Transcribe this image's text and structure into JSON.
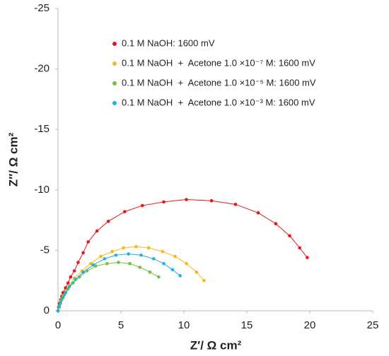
{
  "chart_data": {
    "type": "scatter",
    "x_label": "Z′/ Ω cm²",
    "y_label": "Z″/ Ω cm²",
    "xlim": [
      0,
      25
    ],
    "xticks": [
      0,
      5,
      10,
      15,
      20,
      25
    ],
    "ylim": [
      0,
      -25
    ],
    "yticks": [
      0,
      -5,
      -10,
      -15,
      -20,
      -25
    ],
    "legend_position": "upper left",
    "grid": false,
    "connect_points": true,
    "series": [
      {
        "name": "0.1 M NaOH: 1600 mV",
        "color": "#e8161b",
        "x": [
          0,
          0.05,
          0.1,
          0.2,
          0.3,
          0.4,
          0.6,
          0.8,
          1.0,
          1.3,
          1.6,
          2.0,
          2.4,
          3.1,
          4.0,
          5.3,
          6.7,
          8.4,
          10.2,
          12.2,
          14.1,
          15.9,
          17.3,
          18.4,
          19.2,
          19.8
        ],
        "values": [
          0,
          -0.3,
          -0.6,
          -0.9,
          -1.2,
          -1.5,
          -1.9,
          -2.3,
          -2.8,
          -3.3,
          -4.0,
          -4.8,
          -5.7,
          -6.6,
          -7.4,
          -8.2,
          -8.7,
          -9.0,
          -9.2,
          -9.1,
          -8.8,
          -8.1,
          -7.2,
          -6.2,
          -5.2,
          -4.4
        ]
      },
      {
        "name": "0.1 M NaOH  +  Acetone 1.0 ×10⁻⁷ M: 1600 mV",
        "color": "#f7b916",
        "x": [
          0,
          0.1,
          0.2,
          0.4,
          0.6,
          0.9,
          1.3,
          1.9,
          2.6,
          3.4,
          4.3,
          5.2,
          6.2,
          7.2,
          8.3,
          9.3,
          10.2,
          11.0,
          11.6
        ],
        "values": [
          0,
          -0.4,
          -0.8,
          -1.2,
          -1.6,
          -2.1,
          -2.7,
          -3.3,
          -3.9,
          -4.5,
          -4.9,
          -5.2,
          -5.3,
          -5.2,
          -4.9,
          -4.5,
          -3.9,
          -3.2,
          -2.5
        ]
      },
      {
        "name": "0.1 M NaOH  +  Acetone 1.0 ×10⁻⁵ M: 1600 mV",
        "color": "#72c13e",
        "x": [
          0,
          0.1,
          0.2,
          0.3,
          0.5,
          0.8,
          1.2,
          1.7,
          2.3,
          3.0,
          3.9,
          4.8,
          5.7,
          6.5,
          7.3,
          8.0
        ],
        "values": [
          0,
          -0.3,
          -0.6,
          -0.9,
          -1.3,
          -1.8,
          -2.3,
          -2.8,
          -3.3,
          -3.7,
          -3.9,
          -4.0,
          -3.9,
          -3.6,
          -3.2,
          -2.8
        ]
      },
      {
        "name": "0.1 M NaOH  +  Acetone 1.0 ×10⁻³ M: 1600 mV",
        "color": "#22aee6",
        "x": [
          0,
          0.1,
          0.2,
          0.4,
          0.6,
          0.9,
          1.4,
          2.0,
          2.8,
          3.7,
          4.6,
          5.6,
          6.6,
          7.6,
          8.4,
          9.1,
          9.7
        ],
        "values": [
          0,
          -0.4,
          -0.7,
          -1.1,
          -1.5,
          -2.0,
          -2.6,
          -3.2,
          -3.8,
          -4.3,
          -4.6,
          -4.7,
          -4.6,
          -4.3,
          -3.9,
          -3.4,
          -2.9
        ]
      }
    ]
  }
}
